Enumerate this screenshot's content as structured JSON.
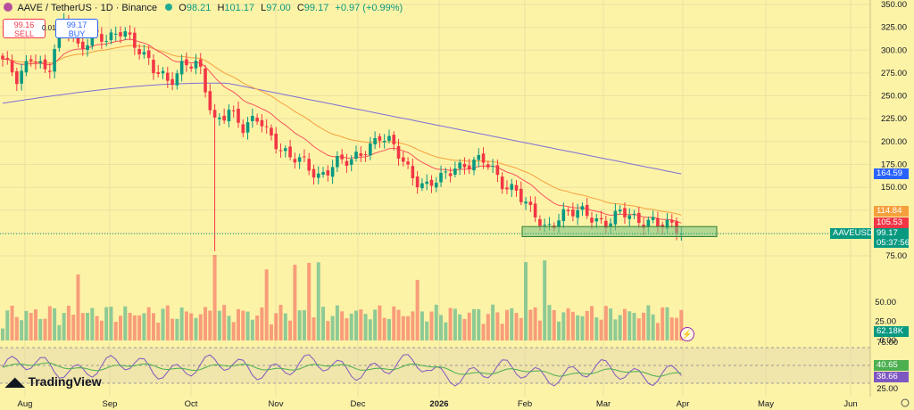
{
  "header": {
    "symbol_title": "AAVE / TetherUS · 1D · Binance",
    "open_label": "O",
    "open": "98.21",
    "high_label": "H",
    "high": "101.17",
    "low_label": "L",
    "low": "97.00",
    "close_label": "C",
    "close": "99.17",
    "change": "+0.97 (+0.99%)"
  },
  "trading": {
    "sell_price": "99.16",
    "sell_label": "SELL",
    "buy_price": "99.17",
    "buy_label": "BUY",
    "spread": "0.01"
  },
  "branding": {
    "logo_text": "TradingView"
  },
  "price_labels": {
    "sma200": "164.59",
    "ema_slow": "114.84",
    "ema_fast": "105.53",
    "symbol": "AAVEUSDT",
    "last": "99.17",
    "countdown": "05:37:56",
    "volume": "62.18K",
    "rsi_ma": "40.65",
    "rsi": "38.66"
  },
  "colors": {
    "background": "#fdf3a7",
    "up": "#089981",
    "down": "#f23645",
    "sma200": "#7e6fd6",
    "ema_fast": "#f7525f",
    "ema_slow": "#f5a03c",
    "rsi": "#7e57c2",
    "rsi_ma": "#4caf50",
    "support_zone": "#81c784"
  },
  "chart_data": {
    "type": "candlestick",
    "title": "AAVE / TetherUS · 1D · Binance",
    "price_axis_ticks": [
      350,
      325,
      300,
      275,
      250,
      225,
      200,
      175,
      150,
      125,
      100,
      75
    ],
    "price_range": [
      75,
      350
    ],
    "x_ticks": [
      "Aug",
      "Sep",
      "Oct",
      "Nov",
      "Dec",
      "2026",
      "Feb",
      "Mar",
      "Apr",
      "May",
      "Jun"
    ],
    "volume_axis_ticks": [
      50,
      25,
      0
    ],
    "rsi_axis_ticks": [
      75,
      25
    ],
    "price_series": [
      {
        "date": "Aug",
        "close": 290
      },
      {
        "date": "Aug 8",
        "close": 262
      },
      {
        "date": "Aug 13",
        "close": 300
      },
      {
        "date": "Aug 18",
        "close": 275
      },
      {
        "date": "Aug 24",
        "close": 330
      },
      {
        "date": "Aug 28",
        "close": 305
      },
      {
        "date": "Sep 2",
        "close": 320
      },
      {
        "date": "Sep 8",
        "close": 305
      },
      {
        "date": "Sep 14",
        "close": 325
      },
      {
        "date": "Sep 20",
        "close": 305
      },
      {
        "date": "Sep 26",
        "close": 275
      },
      {
        "date": "Sep 30",
        "close": 265
      },
      {
        "date": "Oct 3",
        "close": 290
      },
      {
        "date": "Oct 8",
        "close": 280
      },
      {
        "date": "Oct 10",
        "close": 220
      },
      {
        "date": "Oct 14",
        "close": 240
      },
      {
        "date": "Oct 18",
        "close": 210
      },
      {
        "date": "Oct 25",
        "close": 225
      },
      {
        "date": "Oct 30",
        "close": 205
      },
      {
        "date": "Nov 4",
        "close": 180
      },
      {
        "date": "Nov 10",
        "close": 175
      },
      {
        "date": "Nov 16",
        "close": 165
      },
      {
        "date": "Nov 22",
        "close": 175
      },
      {
        "date": "Nov 28",
        "close": 175
      },
      {
        "date": "Dec 3",
        "close": 195
      },
      {
        "date": "Dec 10",
        "close": 205
      },
      {
        "date": "Dec 16",
        "close": 190
      },
      {
        "date": "Dec 22",
        "close": 170
      },
      {
        "date": "Dec 28",
        "close": 150
      },
      {
        "date": "2026",
        "close": 155
      },
      {
        "date": "Jan 6",
        "close": 175
      },
      {
        "date": "Jan 12",
        "close": 178
      },
      {
        "date": "Jan 18",
        "close": 175
      },
      {
        "date": "Jan 24",
        "close": 158
      },
      {
        "date": "Jan 30",
        "close": 150
      },
      {
        "date": "Feb 2",
        "close": 120
      },
      {
        "date": "Feb 5",
        "close": 105
      },
      {
        "date": "Feb 10",
        "close": 123
      },
      {
        "date": "Feb 16",
        "close": 120
      },
      {
        "date": "Feb 22",
        "close": 118
      },
      {
        "date": "Feb 28",
        "close": 114
      },
      {
        "date": "Mar 5",
        "close": 120
      },
      {
        "date": "Mar 10",
        "close": 112
      },
      {
        "date": "Mar 16",
        "close": 118
      },
      {
        "date": "Mar 21",
        "close": 106
      },
      {
        "date": "Mar 25",
        "close": 99.17
      }
    ],
    "support_zone": [
      96,
      107
    ],
    "series": [
      {
        "name": "SMA 200",
        "last": 164.59
      },
      {
        "name": "EMA slow",
        "last": 114.84
      },
      {
        "name": "EMA fast",
        "last": 105.53
      },
      {
        "name": "Volume",
        "last": "62.18K"
      },
      {
        "name": "RSI",
        "last": 38.66
      },
      {
        "name": "RSI MA",
        "last": 40.65
      }
    ]
  }
}
